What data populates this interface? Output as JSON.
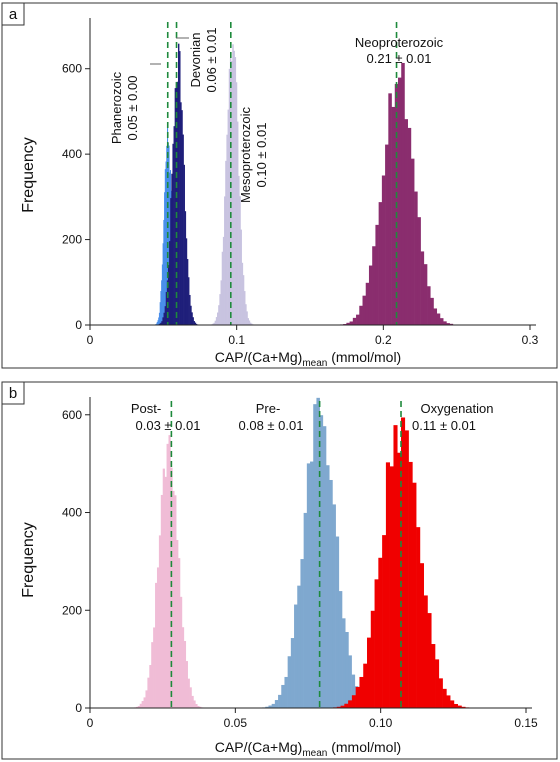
{
  "chart_data": [
    {
      "panel_label": "a",
      "type": "histogram",
      "xlabel_main": "CAP/(Ca+Mg)",
      "xlabel_sub": "mean",
      "xlabel_unit": " (mmol/mol)",
      "ylabel": "Frequency",
      "xlim": [
        0,
        0.3
      ],
      "ylim": [
        0,
        700
      ],
      "xticks": [
        0,
        0.1,
        0.2,
        0.3
      ],
      "xtick_labels": [
        "0",
        "0.1",
        "0.2",
        "0.3"
      ],
      "yticks": [
        0,
        200,
        400,
        600
      ],
      "ytick_labels": [
        "0",
        "200",
        "400",
        "600"
      ],
      "grid": false,
      "series": [
        {
          "name": "Phanerozoic",
          "annotation": "0.05 ± 0.00",
          "mean": 0.053,
          "sd": 0.0025,
          "peak": 450,
          "color": "#4a8fea",
          "text_rotated": true
        },
        {
          "name": "Devonian",
          "annotation": "0.06 ± 0.01",
          "mean": 0.06,
          "sd": 0.0038,
          "peak": 650,
          "color": "#1f1f7a",
          "text_rotated": true
        },
        {
          "name": "Mesoproterozoic",
          "annotation": "0.10 ± 0.01",
          "mean": 0.097,
          "sd": 0.004,
          "peak": 690,
          "color": "#c8c3e0",
          "text_rotated": true
        },
        {
          "name": "Neoproterozoic",
          "annotation": "0.21 ± 0.01",
          "mean": 0.21,
          "sd": 0.011,
          "peak": 595,
          "color": "#8a2d6e",
          "text_rotated": false
        }
      ],
      "dashed_lines": [
        0.053,
        0.059,
        0.096,
        0.209
      ],
      "dashed_color": "#1e8a3c"
    },
    {
      "panel_label": "b",
      "type": "histogram",
      "xlabel_main": "CAP/(Ca+Mg)",
      "xlabel_sub": "mean",
      "xlabel_unit": " (mmol/mol)",
      "ylabel": "Frequency",
      "xlim": [
        0,
        0.15
      ],
      "ylim": [
        0,
        620
      ],
      "xticks": [
        0,
        0.05,
        0.1,
        0.15
      ],
      "xtick_labels": [
        "0",
        "0.05",
        "0.10",
        "0.15"
      ],
      "yticks": [
        0,
        200,
        400,
        600
      ],
      "ytick_labels": [
        "0",
        "200",
        "400",
        "600"
      ],
      "grid": false,
      "series": [
        {
          "name": "Post-",
          "annotation": "0.03 ± 0.01",
          "mean": 0.027,
          "sd": 0.0033,
          "peak": 555,
          "color": "#f0bcd6"
        },
        {
          "name": "Pre-",
          "annotation": "0.08 ± 0.01",
          "mean": 0.079,
          "sd": 0.0055,
          "peak": 620,
          "color": "#7fa8cf"
        },
        {
          "name": "Oxygenation",
          "annotation": "0.11 ± 0.01",
          "mean": 0.107,
          "sd": 0.0065,
          "peak": 595,
          "color": "#f00000"
        }
      ],
      "dashed_lines": [
        0.028,
        0.079,
        0.107
      ],
      "dashed_color": "#1e8a3c"
    }
  ]
}
